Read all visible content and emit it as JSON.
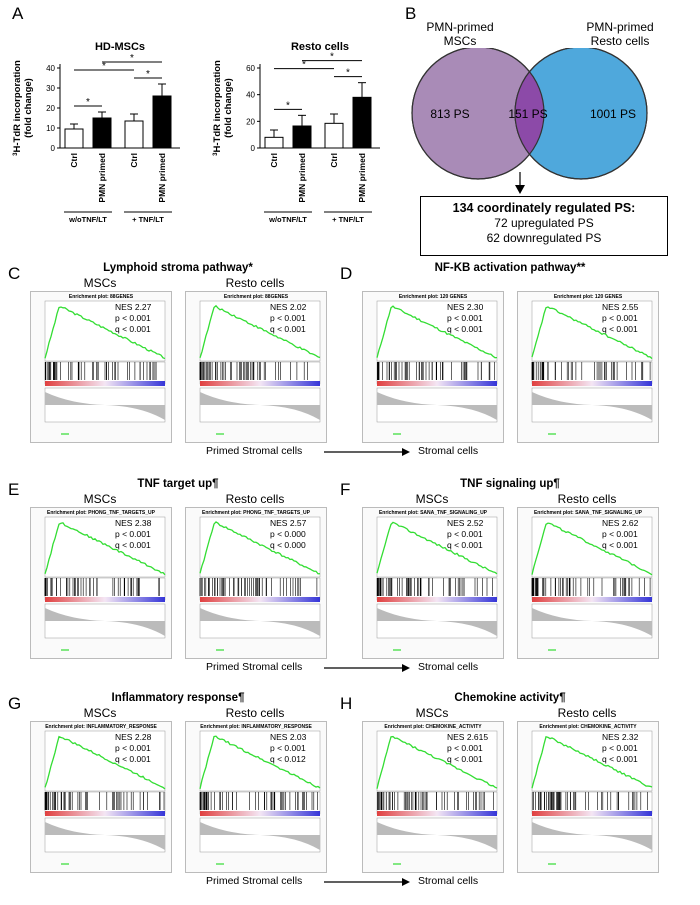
{
  "panels": {
    "A": "A",
    "B": "B",
    "C": "C",
    "D": "D",
    "E": "E",
    "F": "F",
    "G": "G",
    "H": "H"
  },
  "chart_data": [
    {
      "type": "bar",
      "title": "HD-MSCs",
      "ylabel": "3H-TdR incorporation (fold change)",
      "ylabel_sup": "3",
      "ylabel_rest": "H-TdR incorporation",
      "ylabel_line2": "(fold change)",
      "ylim": [
        0,
        40
      ],
      "yticks": [
        "0",
        "10",
        "20",
        "30",
        "40"
      ],
      "categories": [
        "Ctrl",
        "PMN primed",
        "Ctrl",
        "PMN primed"
      ],
      "values": [
        9.5,
        15,
        13.5,
        26
      ],
      "errors": [
        2.5,
        3,
        3.5,
        6
      ],
      "colors": [
        "#ffffff",
        "#000000",
        "#ffffff",
        "#000000"
      ],
      "groups": [
        "w/oTNF/LT",
        "+ TNF/LT"
      ],
      "significance": [
        "*",
        "*",
        "*",
        "*"
      ]
    },
    {
      "type": "bar",
      "title": "Resto cells",
      "ylabel": "3H-TdR incorporation (fold change)",
      "ylabel_sup": "3",
      "ylabel_rest": "H-TdR incorporation",
      "ylabel_line2": "(fold change)",
      "ylim": [
        0,
        60
      ],
      "yticks": [
        "0",
        "20",
        "40",
        "60"
      ],
      "categories": [
        "Ctrl",
        "PMN primed",
        "Ctrl",
        "PMN primed"
      ],
      "values": [
        8,
        16.5,
        18.5,
        38
      ],
      "errors": [
        5.5,
        8,
        7,
        11
      ],
      "colors": [
        "#ffffff",
        "#000000",
        "#ffffff",
        "#000000"
      ],
      "groups": [
        "w/oTNF/LT",
        "+ TNF/LT"
      ],
      "significance": [
        "*",
        "*",
        "*",
        "*"
      ]
    }
  ],
  "venn": {
    "left_title_1": "PMN-primed",
    "left_title_2": "MSCs",
    "right_title_1": "PMN-primed",
    "right_title_2": "Resto cells",
    "left_count": "813 PS",
    "overlap_count": "151 PS",
    "right_count": "1001 PS",
    "left_color": "#a98bb7",
    "overlap_color": "#8c4aa8",
    "right_color": "#4fa8dc",
    "box_line1": "134 coordinately regulated PS:",
    "box_line2": "72 upregulated PS",
    "box_line3": "62 downregulated PS"
  },
  "gsea_rows": [
    {
      "left": {
        "letter": "C",
        "title": "Lymphoid stroma pathway*",
        "plots": [
          {
            "col": "MSCs",
            "header": "Enrichment plot: 88GENES",
            "nes": "NES 2.27",
            "p": "p < 0.001",
            "q": "q < 0.001"
          },
          {
            "col": "Resto cells",
            "header": "Enrichment plot: 88GENES",
            "nes": "NES 2.02",
            "p": "p < 0.001",
            "q": "q < 0.001"
          }
        ]
      },
      "right": {
        "letter": "D",
        "title": "NF-KB activation pathway**",
        "plots": [
          {
            "col": "",
            "header": "Enrichment plot: 120 GENES",
            "nes": "NES 2.30",
            "p": "p < 0.001",
            "q": "q < 0.001"
          },
          {
            "col": "",
            "header": "Enrichment plot: 120 GENES",
            "nes": "NES 2.55",
            "p": "p < 0.001",
            "q": "q < 0.001"
          }
        ]
      },
      "arrow_left": "Primed Stromal cells",
      "arrow_right": "Stromal cells"
    },
    {
      "left": {
        "letter": "E",
        "title": "TNF target up¶",
        "plots": [
          {
            "col": "MSCs",
            "header": "Enrichment plot: PHONG_TNF_TARGETS_UP",
            "nes": "NES 2.38",
            "p": "p < 0.001",
            "q": "q < 0.001"
          },
          {
            "col": "Resto cells",
            "header": "Enrichment plot: PHONG_TNF_TARGETS_UP",
            "nes": "NES 2.57",
            "p": "p < 0.000",
            "q": "q < 0.000"
          }
        ]
      },
      "right": {
        "letter": "F",
        "title": "TNF signaling up¶",
        "plots": [
          {
            "col": "MSCs",
            "header": "Enrichment plot: SANA_TNF_SIGNALING_UP",
            "nes": "NES 2.52",
            "p": "p < 0.001",
            "q": "q < 0.001"
          },
          {
            "col": "Resto cells",
            "header": "Enrichment plot: SANA_TNF_SIGNALING_UP",
            "nes": "NES 2.62",
            "p": "p < 0.001",
            "q": "q < 0.001"
          }
        ]
      },
      "arrow_left": "Primed Stromal cells",
      "arrow_right": "Stromal cells"
    },
    {
      "left": {
        "letter": "G",
        "title": "Inflammatory response¶",
        "plots": [
          {
            "col": "MSCs",
            "header": "Enrichment plot: INFLAMMATORY_RESPONSE",
            "nes": "NES 2.28",
            "p": "p < 0.001",
            "q": "q < 0.001"
          },
          {
            "col": "Resto cells",
            "header": "Enrichment plot: INFLAMMATORY_RESPONSE",
            "nes": "NES 2.03",
            "p": "p < 0.001",
            "q": "q < 0.012"
          }
        ]
      },
      "right": {
        "letter": "H",
        "title": "Chemokine activity¶",
        "plots": [
          {
            "col": "MSCs",
            "header": "Enrichment plot: CHEMOKINE_ACTIVITY",
            "nes": "NES 2.615",
            "p": "p < 0.001",
            "q": "q < 0.001"
          },
          {
            "col": "Resto cells",
            "header": "Enrichment plot: CHEMOKINE_ACTIVITY",
            "nes": "NES 2.32",
            "p": "p < 0.001",
            "q": "q < 0.001"
          }
        ]
      },
      "arrow_left": "Primed Stromal cells",
      "arrow_right": "Stromal cells"
    }
  ]
}
